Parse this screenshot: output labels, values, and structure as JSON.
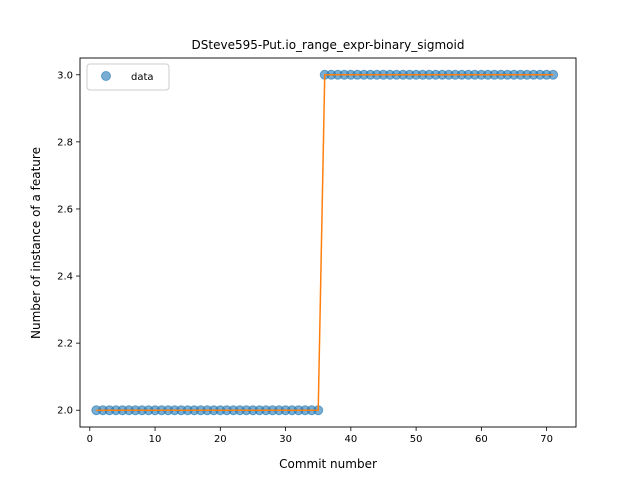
{
  "chart_data": {
    "type": "scatter",
    "title": "DSteve595-Put.io_range_expr-binary_sigmoid",
    "xlabel": "Commit number",
    "ylabel": "Number of instance of a feature",
    "xlim": [
      -1.5,
      74.5
    ],
    "ylim": [
      1.95,
      3.05
    ],
    "xticks": [
      0,
      10,
      20,
      30,
      40,
      50,
      60,
      70
    ],
    "yticks": [
      2.0,
      2.2,
      2.4,
      2.6,
      2.8,
      3.0
    ],
    "ytick_labels": [
      "2.0",
      "2.2",
      "2.4",
      "2.6",
      "2.8",
      "3.0"
    ],
    "legend": {
      "position": "top-left",
      "entries": [
        "data"
      ]
    },
    "grid": false,
    "series": [
      {
        "name": "data",
        "style": "markers",
        "color": "#1f77b4",
        "x": [
          1,
          2,
          3,
          4,
          5,
          6,
          7,
          8,
          9,
          10,
          11,
          12,
          13,
          14,
          15,
          16,
          17,
          18,
          19,
          20,
          21,
          22,
          23,
          24,
          25,
          26,
          27,
          28,
          29,
          30,
          31,
          32,
          33,
          34,
          35,
          36,
          37,
          38,
          39,
          40,
          41,
          42,
          43,
          44,
          45,
          46,
          47,
          48,
          49,
          50,
          51,
          52,
          53,
          54,
          55,
          56,
          57,
          58,
          59,
          60,
          61,
          62,
          63,
          64,
          65,
          66,
          67,
          68,
          69,
          70,
          71
        ],
        "y": [
          2,
          2,
          2,
          2,
          2,
          2,
          2,
          2,
          2,
          2,
          2,
          2,
          2,
          2,
          2,
          2,
          2,
          2,
          2,
          2,
          2,
          2,
          2,
          2,
          2,
          2,
          2,
          2,
          2,
          2,
          2,
          2,
          2,
          2,
          2,
          3,
          3,
          3,
          3,
          3,
          3,
          3,
          3,
          3,
          3,
          3,
          3,
          3,
          3,
          3,
          3,
          3,
          3,
          3,
          3,
          3,
          3,
          3,
          3,
          3,
          3,
          3,
          3,
          3,
          3,
          3,
          3,
          3,
          3,
          3,
          3
        ]
      },
      {
        "style": "line",
        "color": "#ff7f0e",
        "x": [
          1,
          35,
          36,
          71
        ],
        "y": [
          2,
          2,
          3,
          3
        ]
      }
    ]
  }
}
